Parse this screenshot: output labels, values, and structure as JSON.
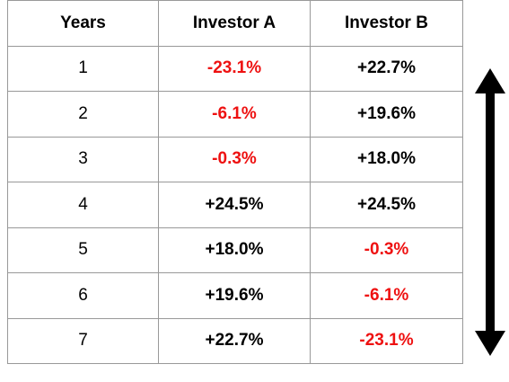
{
  "table": {
    "headers": [
      "Years",
      "Investor A",
      "Investor B"
    ],
    "rows": [
      {
        "year": "1",
        "a": "-23.1%",
        "b": "+22.7%"
      },
      {
        "year": "2",
        "a": "-6.1%",
        "b": "+19.6%"
      },
      {
        "year": "3",
        "a": "-0.3%",
        "b": "+18.0%"
      },
      {
        "year": "4",
        "a": "+24.5%",
        "b": "+24.5%"
      },
      {
        "year": "5",
        "a": "+18.0%",
        "b": "-0.3%"
      },
      {
        "year": "6",
        "a": "+19.6%",
        "b": "-6.1%"
      },
      {
        "year": "7",
        "a": "+22.7%",
        "b": "-23.1%"
      }
    ]
  },
  "colors": {
    "negative": "#ee1111",
    "positive": "#000000",
    "border": "#999999"
  },
  "icons": {
    "arrow": "double-headed-vertical-arrow-icon"
  }
}
